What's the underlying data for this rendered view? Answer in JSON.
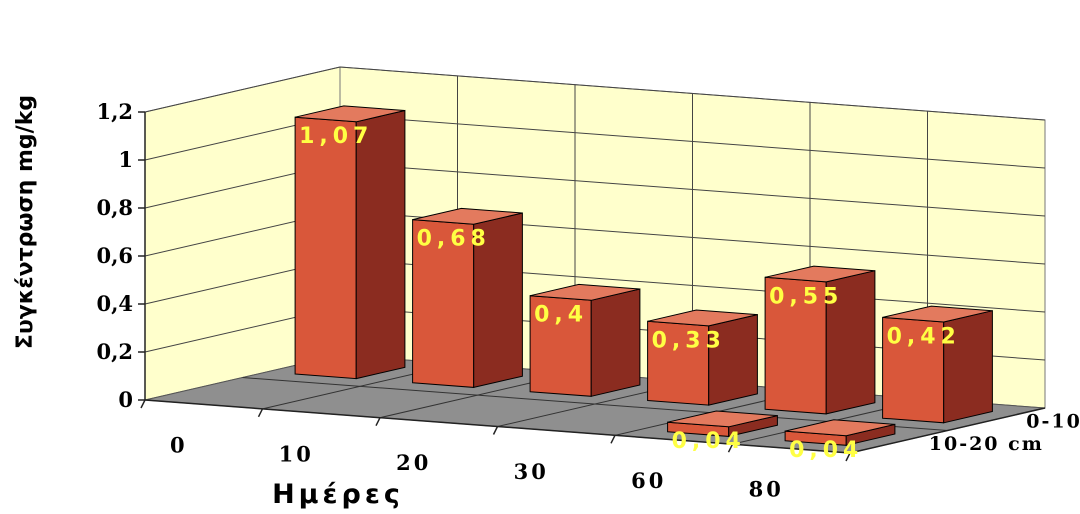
{
  "chart_data": {
    "type": "bar",
    "subtype": "3d-clustered-depth",
    "title": "",
    "xlabel": "Ημέρες",
    "ylabel": "Συγκέντρωση mg/kg",
    "ylim": [
      0,
      1.2
    ],
    "y_ticks": [
      "0",
      "0,2",
      "0,4",
      "0,6",
      "0,8",
      "1",
      "1,2"
    ],
    "y_tick_values": [
      0,
      0.2,
      0.4,
      0.6,
      0.8,
      1.0,
      1.2
    ],
    "categories": [
      "0",
      "10",
      "20",
      "30",
      "60",
      "80"
    ],
    "depth_labels": [
      "0-10 cm",
      "10-20 cm"
    ],
    "series": [
      {
        "name": "0-10 cm",
        "values": [
          1.07,
          0.68,
          0.4,
          0.33,
          0.55,
          0.42
        ],
        "labels": [
          "1,07",
          "0,68",
          "0,4",
          "0,33",
          "0,55",
          "0,42"
        ]
      },
      {
        "name": "10-20 cm",
        "values": [
          null,
          null,
          null,
          null,
          0.04,
          0.04
        ],
        "labels": [
          "",
          "",
          "",
          "",
          "0,04",
          "0,04"
        ]
      }
    ],
    "colors": {
      "bar_front": "#d9573a",
      "bar_top": "#e37a5e",
      "bar_side": "#8b2c20",
      "back_wall": "#ffffcc",
      "floor": "#8f8f8f",
      "data_label": "#ffff44"
    },
    "grid": true,
    "legend": "none"
  }
}
